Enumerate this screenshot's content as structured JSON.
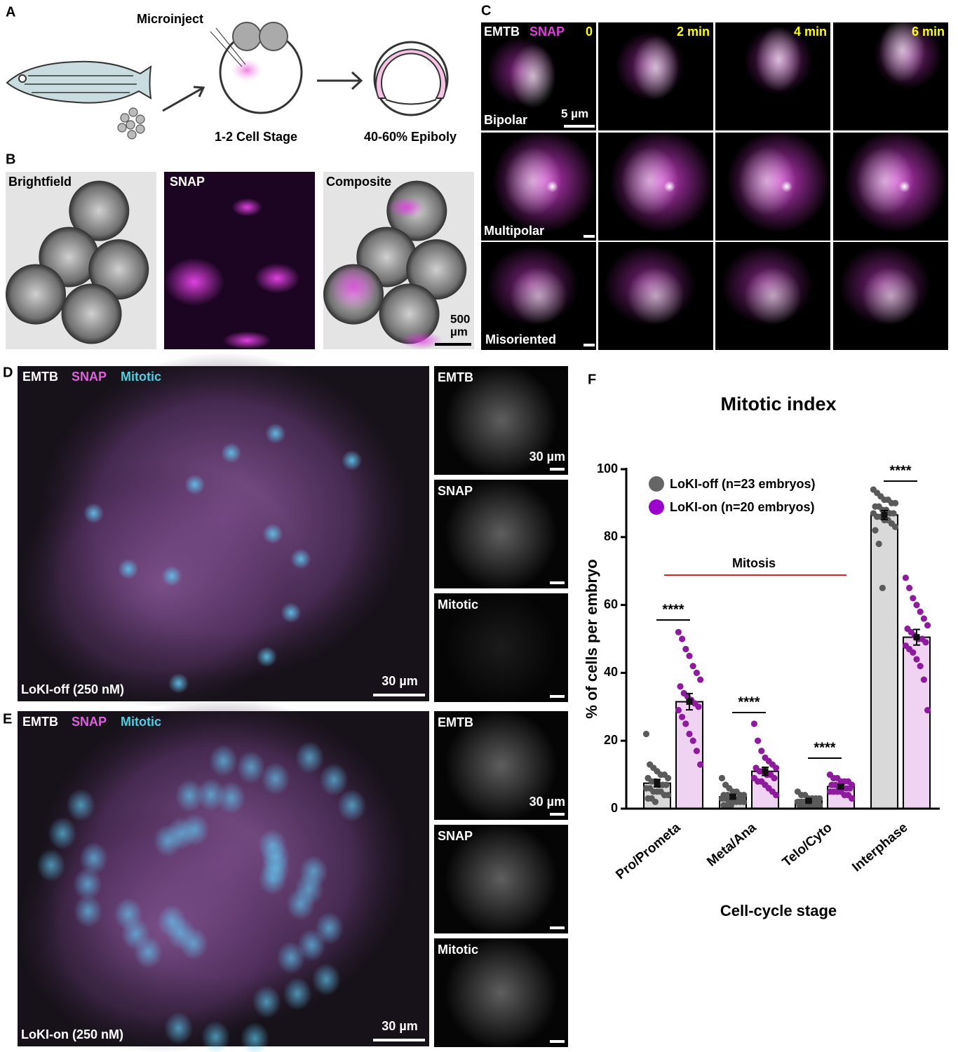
{
  "panel_a": {
    "label": "A",
    "microinject": "Microinject",
    "stage_1": "1-2 Cell Stage",
    "stage_2": "40-60% Epiboly"
  },
  "panel_b": {
    "label": "B",
    "images": [
      "Brightfield",
      "SNAP",
      "Composite"
    ],
    "scale_bar": [
      "500",
      "µm"
    ]
  },
  "panel_c": {
    "label": "C",
    "channels": [
      "EMTB",
      "SNAP"
    ],
    "times": [
      "0",
      "2 min",
      "4 min",
      "6 min"
    ],
    "rows": [
      "Bipolar",
      "Multipolar",
      "Misoriented"
    ],
    "scale_bar": "5 µm"
  },
  "panel_d": {
    "label": "D",
    "channels": [
      "EMTB",
      "SNAP",
      "Mitotic"
    ],
    "condition": "LoKI-off (250 nM)",
    "scale_bar": "30 µm",
    "side_panels": [
      "EMTB",
      "SNAP",
      "Mitotic"
    ],
    "side_scale_bar": "30 µm"
  },
  "panel_e": {
    "label": "E",
    "channels": [
      "EMTB",
      "SNAP",
      "Mitotic"
    ],
    "condition": "LoKI-on (250 nM)",
    "scale_bar": "30 µm",
    "side_panels": [
      "EMTB",
      "SNAP",
      "Mitotic"
    ],
    "side_scale_bar": "30 µm"
  },
  "panel_f": {
    "label": "F"
  },
  "chart_data": {
    "type": "bar",
    "title": "Mitotic index",
    "x_label": "Cell-cycle stage",
    "y_label": "% of cells per embryo",
    "categories": [
      "Pro/Prometa",
      "Meta/Ana",
      "Telo/Cyto",
      "Interphase"
    ],
    "series": [
      {
        "name": "LoKI-off (n=23 embryos)",
        "color": "#d9d9d9",
        "point_color": "#5a5a5a",
        "values": [
          7.5,
          3.5,
          2.3,
          86.5
        ],
        "errors": [
          1.1,
          0.5,
          0.3,
          1.3
        ],
        "points": [
          [
            22,
            13,
            12,
            11,
            10,
            10,
            9,
            9,
            8,
            8,
            7,
            7,
            7,
            6,
            6,
            5,
            5,
            5,
            4,
            4,
            3,
            3,
            2
          ],
          [
            9,
            7,
            6,
            5,
            5,
            4,
            4,
            4,
            4,
            3,
            3,
            3,
            3,
            3,
            3,
            2,
            2,
            2,
            2,
            2,
            1,
            1,
            1
          ],
          [
            5,
            4,
            4,
            3,
            3,
            3,
            3,
            2,
            2,
            2,
            2,
            2,
            2,
            2,
            2,
            2,
            1,
            1,
            1,
            1,
            1,
            1,
            1
          ],
          [
            94,
            93,
            92,
            91,
            91,
            90,
            90,
            89,
            89,
            88,
            88,
            87,
            87,
            87,
            86,
            86,
            85,
            85,
            84,
            83,
            82,
            78,
            65
          ]
        ]
      },
      {
        "name": "LoKI-on (n=20 embryos)",
        "color": "#f0d2f2",
        "point_color": "#8e1a9e",
        "values": [
          31.5,
          11,
          6.5,
          50.5
        ],
        "errors": [
          2.4,
          1.2,
          0.5,
          2.3
        ],
        "points": [
          [
            52,
            50,
            47,
            45,
            42,
            40,
            38,
            36,
            34,
            33,
            32,
            31,
            30,
            29,
            27,
            25,
            22,
            20,
            17,
            13
          ],
          [
            25,
            20,
            17,
            15,
            14,
            13,
            12,
            12,
            11,
            11,
            10,
            10,
            9,
            9,
            8,
            8,
            7,
            6,
            5,
            4
          ],
          [
            10,
            9,
            9,
            8,
            8,
            8,
            7,
            7,
            7,
            6,
            6,
            6,
            6,
            5,
            5,
            5,
            5,
            4,
            4,
            3
          ],
          [
            68,
            65,
            62,
            60,
            58,
            56,
            54,
            53,
            52,
            51,
            50,
            50,
            49,
            48,
            47,
            46,
            44,
            42,
            38,
            29
          ]
        ]
      }
    ],
    "legend_marker_colors": [
      "#666666",
      "#9b00cc"
    ],
    "ylim": [
      0,
      100
    ],
    "yticks": [
      0,
      20,
      40,
      60,
      80,
      100
    ],
    "significance": [
      "****",
      "****",
      "****",
      "****"
    ],
    "bracket_label": "Mitosis",
    "bracket_color": "#d62728"
  }
}
